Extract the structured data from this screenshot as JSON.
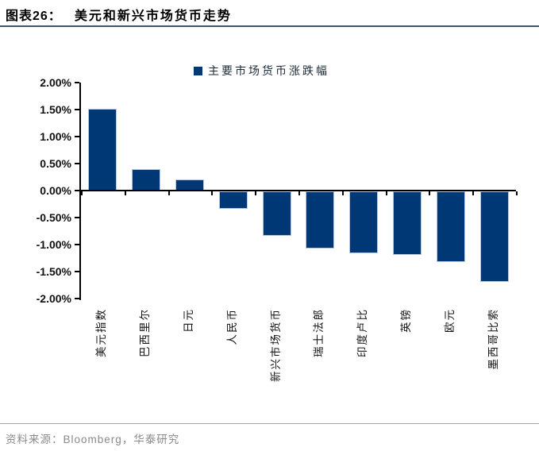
{
  "header": {
    "figure_label": "图表26：",
    "title": "美元和新兴市场货币走势"
  },
  "legend": {
    "label": "主要市场货币涨跌幅",
    "marker_color": "#003876"
  },
  "chart_data": {
    "type": "bar",
    "title": "美元和新兴市场货币走势",
    "legend": [
      "主要市场货币涨跌幅"
    ],
    "legend_position": "top-center",
    "categories": [
      "美元指数",
      "巴西里尔",
      "日元",
      "人民币",
      "新兴市场货币",
      "瑞士法郎",
      "印度卢比",
      "英镑",
      "欧元",
      "墨西哥比索"
    ],
    "values": [
      1.52,
      0.4,
      0.2,
      -0.33,
      -0.82,
      -1.06,
      -1.15,
      -1.18,
      -1.31,
      -1.67
    ],
    "value_unit": "%",
    "ylim": [
      -2.0,
      2.0
    ],
    "ytick_step": 0.5,
    "ytick_labels": [
      "2.00%",
      "1.50%",
      "1.00%",
      "0.50%",
      "0.00%",
      "-0.50%",
      "-1.00%",
      "-1.50%",
      "-2.00%"
    ],
    "bar_color": "#003876",
    "grid": false,
    "xlabel": "",
    "ylabel": ""
  },
  "footer": {
    "source": "资料来源：Bloomberg，华泰研究"
  }
}
